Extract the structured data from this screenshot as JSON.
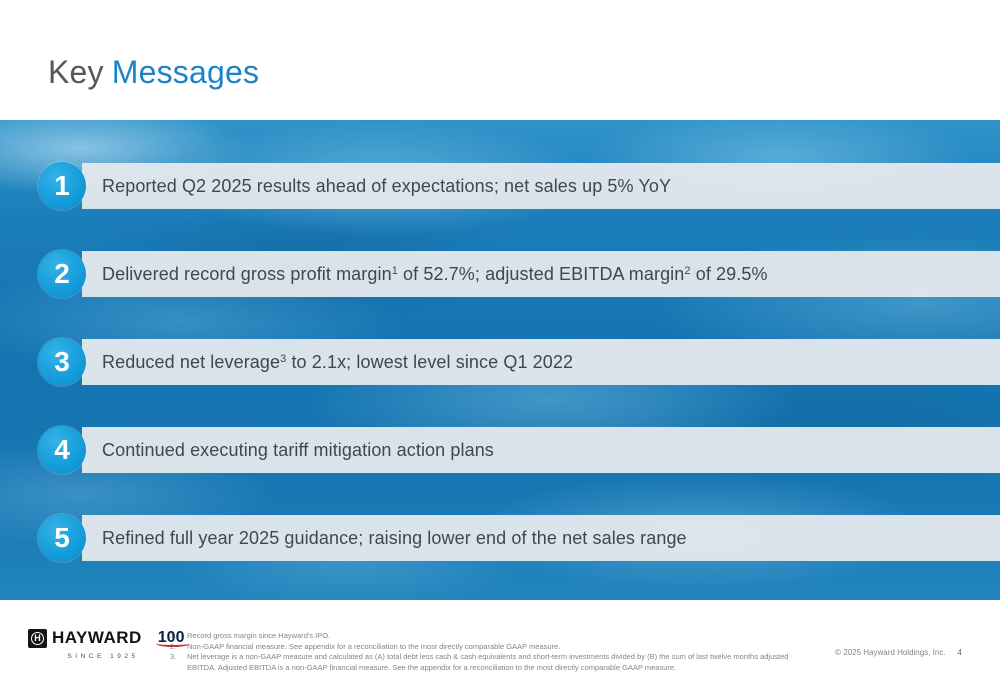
{
  "title": {
    "prefix": "Key",
    "accent": "Messages"
  },
  "messages": [
    {
      "number": "1",
      "segments": [
        {
          "t": "Reported Q2 2025 results ahead of expectations; net sales up 5% YoY"
        }
      ]
    },
    {
      "number": "2",
      "segments": [
        {
          "t": "Delivered record gross profit margin"
        },
        {
          "t": "1",
          "sup": true
        },
        {
          "t": " of 52.7%; adjusted EBITDA margin"
        },
        {
          "t": "2",
          "sup": true
        },
        {
          "t": " of 29.5%"
        }
      ]
    },
    {
      "number": "3",
      "segments": [
        {
          "t": "Reduced net leverage"
        },
        {
          "t": "3",
          "sup": true
        },
        {
          "t": " to 2.1x; lowest level since Q1 2022"
        }
      ]
    },
    {
      "number": "4",
      "segments": [
        {
          "t": "Continued executing tariff mitigation action plans"
        }
      ]
    },
    {
      "number": "5",
      "segments": [
        {
          "t": "Refined full year 2025 guidance; raising lower end of the net sales range"
        }
      ]
    }
  ],
  "footer": {
    "logo": {
      "mark_letter": "H",
      "brand": "HAYWARD",
      "anniversary": "100",
      "tagline": "SINCE 1925"
    },
    "footnotes": [
      {
        "number": "1.",
        "text": "Record gross margin since Hayward's IPO."
      },
      {
        "number": "2.",
        "text": "Non-GAAP financial measure. See appendix for a reconciliation to the most directly comparable GAAP measure."
      },
      {
        "number": "3.",
        "text": "Net leverage is a non-GAAP measure and calculated as (A) total debt less cash &  cash equivalents and short-term investments divided by (B) the sum of last twelve months adjusted EBITDA. Adjusted EBITDA is a non-GAAP financial measure. See the appendix for a reconciliation to the most directly comparable GAAP measure."
      }
    ],
    "copyright": "© 2025 Hayward Holdings, Inc.",
    "page_number": "4"
  },
  "colors": {
    "title_accent_blue": "#1b84c6",
    "title_gray": "#54585b",
    "badge_blue": "#149cda",
    "bar_background": "#e4e9ec",
    "water_blue": "#1474b0",
    "footnote_gray": "#7d868c",
    "logo_red": "#d22630"
  }
}
